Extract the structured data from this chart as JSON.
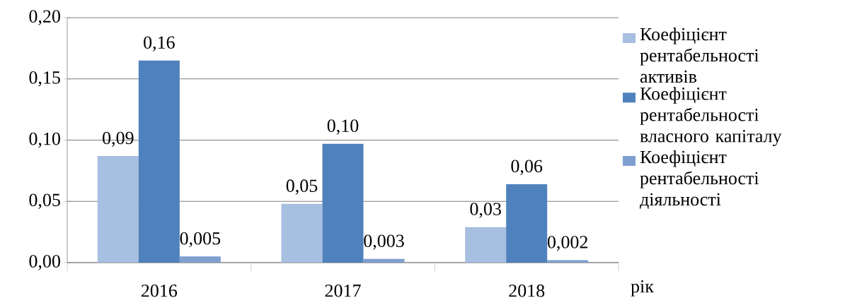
{
  "chart_data": {
    "type": "bar",
    "xlabel": "рік",
    "categories": [
      "2016",
      "2017",
      "2018"
    ],
    "series": [
      {
        "name": "Коефіцієнт рентабельності активів",
        "color": "#a7bfe0",
        "values": [
          0.087,
          0.048,
          0.029
        ],
        "value_labels": [
          "0,09",
          "0,05",
          "0,03"
        ]
      },
      {
        "name": "Коефіцієнт рентабельності власного капіталу",
        "color": "#4f81bd",
        "values": [
          0.165,
          0.097,
          0.064
        ],
        "value_labels": [
          "0,16",
          "0,10",
          "0,06"
        ]
      },
      {
        "name": "Коефіцієнт рентабельності діяльності",
        "color": "#7f9fd0",
        "values": [
          0.005,
          0.003,
          0.002
        ],
        "value_labels": [
          "0,005",
          "0,003",
          "0,002"
        ]
      }
    ],
    "ylim": [
      0,
      0.2
    ],
    "yticks": [
      {
        "value": 0,
        "label": "0,00"
      },
      {
        "value": 0.05,
        "label": "0,05"
      },
      {
        "value": 0.1,
        "label": "0,10"
      },
      {
        "value": 0.15,
        "label": "0,15"
      },
      {
        "value": 0.2,
        "label": "0,20"
      }
    ],
    "grid": "y",
    "legend": "right"
  }
}
